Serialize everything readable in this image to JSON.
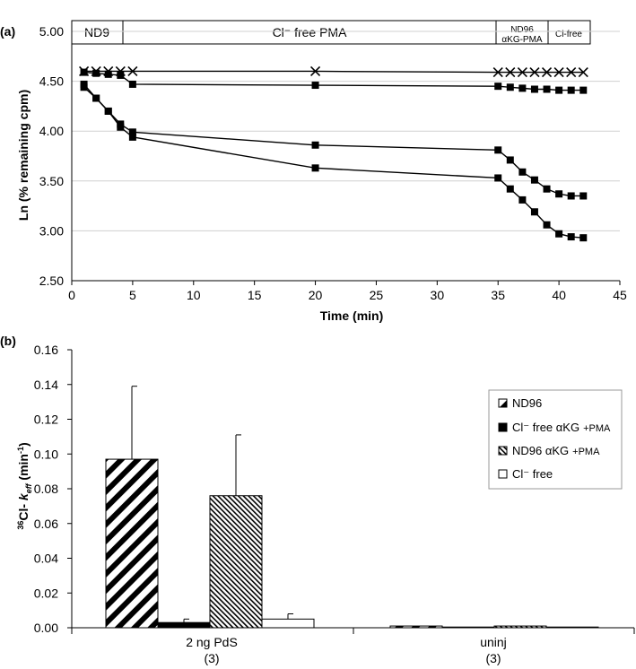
{
  "chart_data": [
    {
      "type": "line",
      "panel_label": "(a)",
      "xlabel": "Time (min)",
      "ylabel": "Ln (% remaining cpm)",
      "xlim": [
        0,
        45
      ],
      "ylim": [
        2.5,
        5.0
      ],
      "x_ticks": [
        "0",
        "5",
        "10",
        "15",
        "20",
        "25",
        "30",
        "35",
        "40",
        "45"
      ],
      "y_ticks": [
        "2.50",
        "3.00",
        "3.50",
        "4.00",
        "4.50",
        "5.00"
      ],
      "phases": [
        {
          "label": "ND9",
          "start": 0,
          "end": 5
        },
        {
          "label": "Cl⁻ free PMA",
          "start": 5,
          "end": 35
        },
        {
          "label": "ND96",
          "label2": "αKG-PMA",
          "start": 35,
          "end": 39
        },
        {
          "label": "Cl-free",
          "start": 39,
          "end": 42
        }
      ],
      "series": [
        {
          "marker": "x",
          "x": [
            1,
            2,
            3,
            4,
            5,
            20,
            35,
            36,
            37,
            38,
            39,
            40,
            41,
            42
          ],
          "y": [
            4.6,
            4.6,
            4.6,
            4.6,
            4.6,
            4.6,
            4.59,
            4.59,
            4.59,
            4.59,
            4.59,
            4.59,
            4.59,
            4.59
          ]
        },
        {
          "marker": "square",
          "x": [
            1,
            2,
            3,
            4,
            5,
            20,
            35,
            36,
            37,
            38,
            39,
            40,
            41,
            42
          ],
          "y": [
            4.59,
            4.58,
            4.57,
            4.56,
            4.47,
            4.46,
            4.45,
            4.44,
            4.43,
            4.42,
            4.42,
            4.41,
            4.41,
            4.41
          ]
        },
        {
          "marker": "square",
          "x": [
            1,
            2,
            3,
            4,
            5,
            20,
            35,
            36,
            37,
            38,
            39,
            40,
            41,
            42
          ],
          "y": [
            4.47,
            4.33,
            4.2,
            4.07,
            3.99,
            3.86,
            3.81,
            3.71,
            3.59,
            3.51,
            3.42,
            3.37,
            3.35,
            3.35
          ]
        },
        {
          "marker": "square",
          "x": [
            1,
            2,
            3,
            4,
            5,
            20,
            35,
            36,
            37,
            38,
            39,
            40,
            41,
            42
          ],
          "y": [
            4.44,
            4.33,
            4.2,
            4.04,
            3.94,
            3.63,
            3.53,
            3.42,
            3.31,
            3.19,
            3.06,
            2.97,
            2.94,
            2.93
          ]
        }
      ]
    },
    {
      "type": "bar",
      "panel_label": "(b)",
      "ylabel_prefix": "36",
      "ylabel_main": "Cl- ",
      "ylabel_k": "k",
      "ylabel_sub": "eff",
      "ylabel_unit": " (min",
      "ylabel_exp": "-1",
      "ylabel_close": ")",
      "ylim": [
        0,
        0.16
      ],
      "y_ticks": [
        "0.00",
        "0.02",
        "0.04",
        "0.06",
        "0.08",
        "0.10",
        "0.12",
        "0.14",
        "0.16"
      ],
      "categories": [
        {
          "line1": "2 ng PdS",
          "line2": "(3)"
        },
        {
          "line1": "uninj",
          "line2": "(3)"
        }
      ],
      "series": [
        {
          "name": "ND96",
          "pattern": "wide-diagonal",
          "values": [
            0.097,
            0.001
          ],
          "errors": [
            0.042,
            0.0
          ]
        },
        {
          "name": "Cl⁻ free αKG",
          "name_small": "+PMA",
          "pattern": "solid-black",
          "values": [
            0.003,
            0.0
          ],
          "errors": [
            0.002,
            0.0
          ]
        },
        {
          "name": "ND96 αKG",
          "name_small": "+PMA",
          "pattern": "fine-diagonal",
          "values": [
            0.076,
            0.001
          ],
          "errors": [
            0.035,
            0.0
          ]
        },
        {
          "name": "Cl⁻ free",
          "pattern": "white",
          "values": [
            0.005,
            0.0
          ],
          "errors": [
            0.003,
            0.0
          ]
        }
      ]
    }
  ]
}
